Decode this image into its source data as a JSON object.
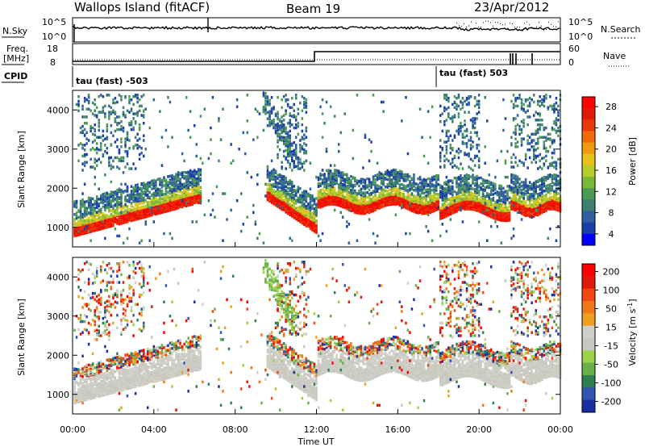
{
  "header": {
    "station": "Wallops Island (fitACF)",
    "beam": "Beam 19",
    "date": "23/Apr/2012"
  },
  "top_panels": {
    "nsky_label": "N.Sky",
    "nsky_ticks": [
      "10^5",
      "10^0"
    ],
    "nsearch_label": "N.Search",
    "nsearch_ticks": [
      "10^5",
      "10^0"
    ],
    "freq_label": "Freq.",
    "freq_unit": "[MHz]",
    "freq_ticks": [
      "18",
      "8"
    ],
    "nave_label": "Nave",
    "nave_ticks": [
      "60",
      "0"
    ],
    "cpid_label": "CPID",
    "cpid_segments": [
      "tau (fast) -503",
      "tau (fast) 503"
    ]
  },
  "chart_data": [
    {
      "type": "heatmap",
      "quantity": "power",
      "xlabel": "",
      "ylabel": "Slant Range [km]",
      "xlim": [
        0,
        24
      ],
      "ylim": [
        500,
        4500
      ],
      "yticks": [
        "1000",
        "2000",
        "3000",
        "4000"
      ],
      "colorbar_label": "Power [dB]",
      "colorbar_ticks": [
        "28",
        "24",
        "20",
        "16",
        "12",
        "8",
        "4"
      ],
      "colorbar_colors": [
        "#0000ff",
        "#1a3fa8",
        "#2f5fa0",
        "#3e7f6e",
        "#4d9a55",
        "#7ab83a",
        "#b8cc2a",
        "#e6c21a",
        "#f09a10",
        "#f06a0a",
        "#e83a08",
        "#e01a05",
        "#ff0000"
      ]
    },
    {
      "type": "heatmap",
      "quantity": "velocity",
      "xlabel": "Time UT",
      "ylabel": "Slant Range [km]",
      "xlim": [
        0,
        24
      ],
      "ylim": [
        500,
        4500
      ],
      "yticks": [
        "1000",
        "2000",
        "3000",
        "4000"
      ],
      "xticks": [
        "00:00",
        "04:00",
        "08:00",
        "12:00",
        "16:00",
        "20:00",
        "00:00"
      ],
      "colorbar_label": "Velocity [m s",
      "colorbar_label_sup": "-1",
      "colorbar_label_end": "]",
      "colorbar_ticks": [
        "200",
        "100",
        "50",
        "15",
        "-15",
        "-50",
        "-100",
        "-200"
      ],
      "colorbar_colors": [
        "#1a2f9f",
        "#2f55b0",
        "#2f7f55",
        "#6ab04a",
        "#9ad24a",
        "#c8c8c0",
        "#d0d0c8",
        "#f0a020",
        "#f07818",
        "#f04810",
        "#e01a0a",
        "#ff0000"
      ]
    }
  ]
}
